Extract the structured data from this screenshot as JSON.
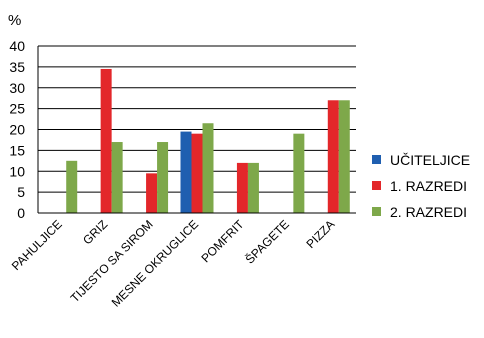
{
  "chart_data": {
    "type": "bar",
    "unit_label": "%",
    "categories": [
      "PAHULJICE",
      "GRIZ",
      "TIJESTO SA SIROM",
      "MESNE OKRUGLICE",
      "POMFRIT",
      "ŠPAGETE",
      "PIZZA"
    ],
    "series": [
      {
        "name": "UČITELJICE",
        "color": "#1f5fb0",
        "values": [
          0,
          0,
          0,
          19.5,
          0,
          0,
          0
        ]
      },
      {
        "name": "1. RAZREDI",
        "color": "#e3272a",
        "values": [
          0,
          34.5,
          9.5,
          19,
          12,
          0,
          27
        ]
      },
      {
        "name": "2. RAZREDI",
        "color": "#7ea84a",
        "values": [
          12.5,
          17,
          17,
          21.5,
          12,
          19,
          27
        ]
      }
    ],
    "ylim": [
      0,
      40
    ],
    "yticks": [
      0,
      5,
      10,
      15,
      20,
      25,
      30,
      35,
      40
    ],
    "grid": true,
    "legend_position": "right"
  }
}
